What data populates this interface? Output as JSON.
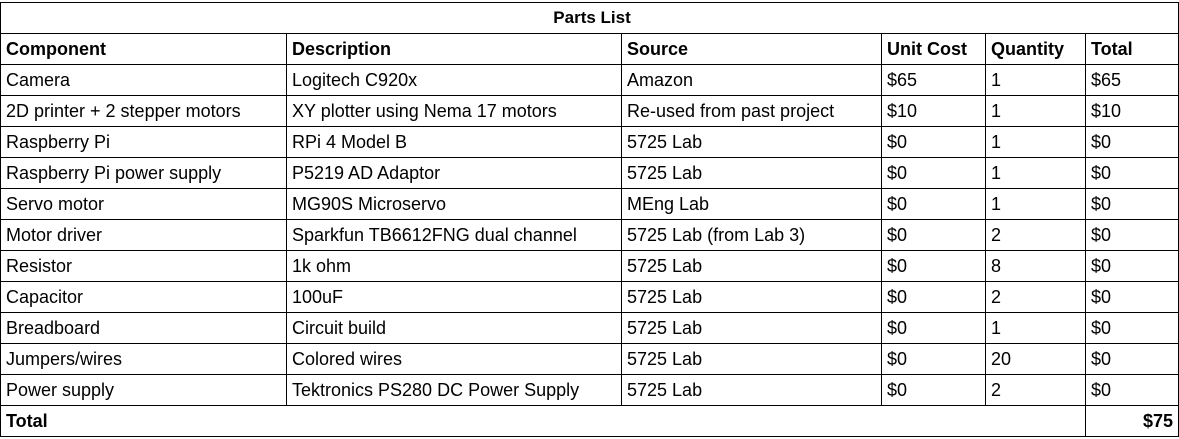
{
  "table": {
    "title": "Parts List",
    "headers": [
      "Component",
      "Description",
      "Source",
      "Unit Cost",
      "Quantity",
      "Total"
    ],
    "rows": [
      [
        "Camera",
        "Logitech C920x",
        "Amazon",
        "$65",
        "1",
        "$65"
      ],
      [
        "2D printer + 2 stepper motors",
        "XY plotter using Nema 17 motors",
        "Re-used from past project",
        "$10",
        "1",
        "$10"
      ],
      [
        "Raspberry Pi",
        "RPi 4 Model B",
        "5725 Lab",
        "$0",
        "1",
        "$0"
      ],
      [
        "Raspberry Pi power supply",
        "P5219 AD Adaptor",
        "5725 Lab",
        "$0",
        "1",
        "$0"
      ],
      [
        "Servo motor",
        "MG90S Microservo",
        "MEng Lab",
        "$0",
        "1",
        "$0"
      ],
      [
        "Motor driver",
        "Sparkfun TB6612FNG dual channel",
        "5725 Lab (from Lab 3)",
        "$0",
        "2",
        "$0"
      ],
      [
        "Resistor",
        "1k ohm",
        "5725 Lab",
        "$0",
        "8",
        "$0"
      ],
      [
        "Capacitor",
        "100uF",
        "5725 Lab",
        "$0",
        "2",
        "$0"
      ],
      [
        "Breadboard",
        "Circuit build",
        "5725 Lab",
        "$0",
        "1",
        "$0"
      ],
      [
        "Jumpers/wires",
        "Colored wires",
        "5725 Lab",
        "$0",
        "20",
        "$0"
      ],
      [
        "Power supply",
        "Tektronics PS280 DC Power Supply",
        "5725 Lab",
        "$0",
        "2",
        "$0"
      ]
    ],
    "total_label": "Total",
    "total_value": "$75"
  }
}
